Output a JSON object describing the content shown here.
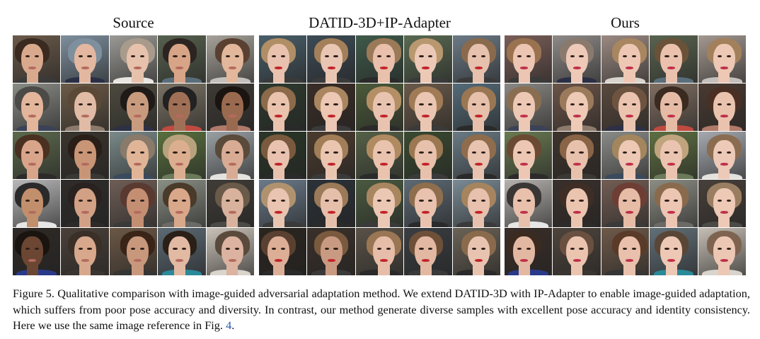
{
  "panels": [
    {
      "title": "Source"
    },
    {
      "title": "DATID-3D+IP-Adapter"
    },
    {
      "title": "Ours"
    }
  ],
  "palettes": {
    "source": {
      "bg": [
        "#6b5a4a",
        "#7e8f9d",
        "#9b9a95",
        "#57614f",
        "#a6a29a",
        "#8a8c86",
        "#6c5b48",
        "#4d4a3f",
        "#7a7264",
        "#3e3a35",
        "#5d6a4d",
        "#3a342d",
        "#7b8a8a",
        "#59703e",
        "#9aa0a3",
        "#b9b9b9",
        "#2f2c2a",
        "#6e5e56",
        "#8a8f84",
        "#403c37",
        "#2e2925",
        "#4a4038",
        "#6b5846",
        "#5c6a74",
        "#c9c2b8"
      ],
      "skin": [
        "#d9a98e",
        "#e3b7a0",
        "#e6c2ac",
        "#d7a487",
        "#e2b79b",
        "#e3b59b",
        "#e0bba6",
        "#c99b7e",
        "#a07056",
        "#9a6a50",
        "#d8a48a",
        "#c89576",
        "#e0b597",
        "#dcae90",
        "#d8ac94",
        "#c28f6c",
        "#d2a185",
        "#c48e73",
        "#d9a78a",
        "#d8b29c",
        "#6b4632",
        "#d7a88c",
        "#c8987c",
        "#e2b9a2",
        "#dbb3a0"
      ],
      "hair": [
        "#3a2a20",
        "#7e8f9d",
        "#a89b8b",
        "#2c2420",
        "#5a4030",
        "#4c4a47",
        "#5b4937",
        "#1f1a17",
        "#222",
        "#1c1410",
        "#4a3020",
        "#2a1e18",
        "#8a7a6a",
        "#b7a27d",
        "#5a4a3a",
        "#2a2a2a",
        "#2a2220",
        "#5a3a30",
        "#4a3a2a",
        "#6a5a4a",
        "#1a1410",
        "#3a3028",
        "#3a2418",
        "#2a2018",
        "#5a4a3c"
      ],
      "shirt": [
        "#3a3a3a",
        "#2a2f45",
        "#e9e6e2",
        "#5a6d7a",
        "#c4c0bd",
        "#3b4257",
        "#8c7a6c",
        "#2e3145",
        "#c04a40",
        "#b07a6a",
        "#2d2a2a",
        "#3a3833",
        "#3a4a5c",
        "#6a7a5a",
        "#e4e2df",
        "#e6e6e6",
        "#2f2a2a",
        "#3a3a3a",
        "#6c6a66",
        "#4a4a46",
        "#2a3a8a",
        "#3a3530",
        "#353535",
        "#2a8a9a",
        "#d9d4cc"
      ],
      "lips": "#b56a5e"
    },
    "datid": {
      "bg": [
        "#4a5f6a",
        "#3d4b55",
        "#3f5a4a",
        "#5a6a52",
        "#6c7a86",
        "#2e3a2e",
        "#3a2d26",
        "#4c5a3a",
        "#6a5a4a",
        "#556b78",
        "#2a3628",
        "#4b3b2e",
        "#556047",
        "#3a4a30",
        "#6a7a84",
        "#6b7a8a",
        "#2c3238",
        "#4a5a40",
        "#5e6a74",
        "#7a8a94",
        "#2a241e",
        "#3a302a",
        "#5a5248",
        "#3a3e42",
        "#6a6256"
      ],
      "skin": [
        "#e8c2ae",
        "#e9c6b3",
        "#e8c0ab",
        "#ebc9b6",
        "#e6c1ad",
        "#e9c3ae",
        "#ecc7b3",
        "#e8c4b0",
        "#eac6b2",
        "#e6c0ab",
        "#e8c2ae",
        "#eac6b1",
        "#e9c3ae",
        "#e8c1ac",
        "#e7c3b0",
        "#e9c4b0",
        "#e6bfaa",
        "#ebc8b4",
        "#e8c2ae",
        "#e7c1ad",
        "#dcae96",
        "#c99a82",
        "#e5bda8",
        "#e2b8a2",
        "#e8c4b0"
      ],
      "hair": [
        "#b08e66",
        "#a3805a",
        "#9a7a58",
        "#b9976f",
        "#8a6a4c",
        "#8c6a4a",
        "#a98660",
        "#b48f66",
        "#a07b56",
        "#9a7652",
        "#7a5a3e",
        "#a17e58",
        "#b08b62",
        "#9b7752",
        "#8e6c4c",
        "#b0936e",
        "#9a7a58",
        "#a88660",
        "#8f6e4e",
        "#a5845e",
        "#5a4030",
        "#7a5a3e",
        "#9a7654",
        "#6e5038",
        "#8a6a4c"
      ],
      "shirt": [
        "#3a3a3a",
        "#3a3a3a",
        "#2a2a2a",
        "#3a3a3a",
        "#3a3a3a",
        "#2a2a2a",
        "#3a3a3a",
        "#2a2a2a",
        "#3a3a3a",
        "#2a2a2a",
        "#2a2a2a",
        "#3a3a3a",
        "#2a2a2a",
        "#3a3a3a",
        "#2a2a2a",
        "#3a3a3a",
        "#2a2a2a",
        "#3a3a3a",
        "#2a2a2a",
        "#3a3a3a",
        "#2a2a2a",
        "#3a3a3a",
        "#2a2a2a",
        "#3a3a3a",
        "#2a2a2a"
      ],
      "lips": "#c3232b"
    },
    "ours": {
      "bg": [
        "#7a5e58",
        "#8e8a88",
        "#9b8a82",
        "#5a6450",
        "#a49890",
        "#8a8884",
        "#6c5448",
        "#5a4a3e",
        "#806e62",
        "#4a3a32",
        "#6a7a52",
        "#3e342c",
        "#8a8c88",
        "#5f7042",
        "#a6aab0",
        "#b5b2ae",
        "#3a302c",
        "#725e54",
        "#8c8e84",
        "#48403a",
        "#3a2e28",
        "#4e443c",
        "#6e5a4a",
        "#627078",
        "#c5beb4"
      ],
      "skin": [
        "#ecc5b3",
        "#eec9b7",
        "#edc7b4",
        "#e9c1ad",
        "#edc8b5",
        "#edc8b5",
        "#eec9b6",
        "#ebc4b0",
        "#e6bba6",
        "#eac3af",
        "#edc7b4",
        "#e8c1ac",
        "#edc8b5",
        "#eac4b0",
        "#edc9b7",
        "#e8c0ab",
        "#ebc4b0",
        "#e6bca7",
        "#ecc6b3",
        "#edc9b6",
        "#e3b8a2",
        "#ebc4b0",
        "#e8c0ab",
        "#edc8b5",
        "#ecc7b4"
      ],
      "hair": [
        "#9a7250",
        "#8a7a6e",
        "#a88660",
        "#6a5238",
        "#a2805c",
        "#8a6e52",
        "#9a7a5a",
        "#6e5440",
        "#3a2a20",
        "#4a3024",
        "#6a4a32",
        "#8a6446",
        "#a4865e",
        "#c0a47e",
        "#8a6c50",
        "#3a3636",
        "#3e2e26",
        "#6e3e34",
        "#8a6a4c",
        "#9a7e62",
        "#3a2a20",
        "#6a5040",
        "#5a3a28",
        "#5a4636",
        "#7e6450"
      ],
      "shirt": [
        "#3a3a3a",
        "#2a2f45",
        "#d9d4ce",
        "#5a6d7a",
        "#c4c0bd",
        "#3b4257",
        "#8c7a6c",
        "#2e3145",
        "#c04a40",
        "#b07a6a",
        "#2d2a2a",
        "#3a3833",
        "#3a4a5c",
        "#6a7a5a",
        "#e4e2df",
        "#e6e6e6",
        "#2f2a2a",
        "#3a3a3a",
        "#6c6a66",
        "#4a4a46",
        "#2a3a8a",
        "#3a3530",
        "#353535",
        "#2a8a9a",
        "#d9d4cc"
      ],
      "lips": "#c0304a"
    }
  },
  "caption": {
    "main": "Figure 5. Qualitative comparison with image-guided adversarial adaptation method. We extend DATID-3D with IP-Adapter to enable image-guided adaptation, which suffers from poor pose accuracy and diversity. In contrast, our method generate diverse samples with excellent pose accuracy and identity consistency. Here we use the same image reference in Fig. ",
    "ref": "4",
    "end": "."
  }
}
